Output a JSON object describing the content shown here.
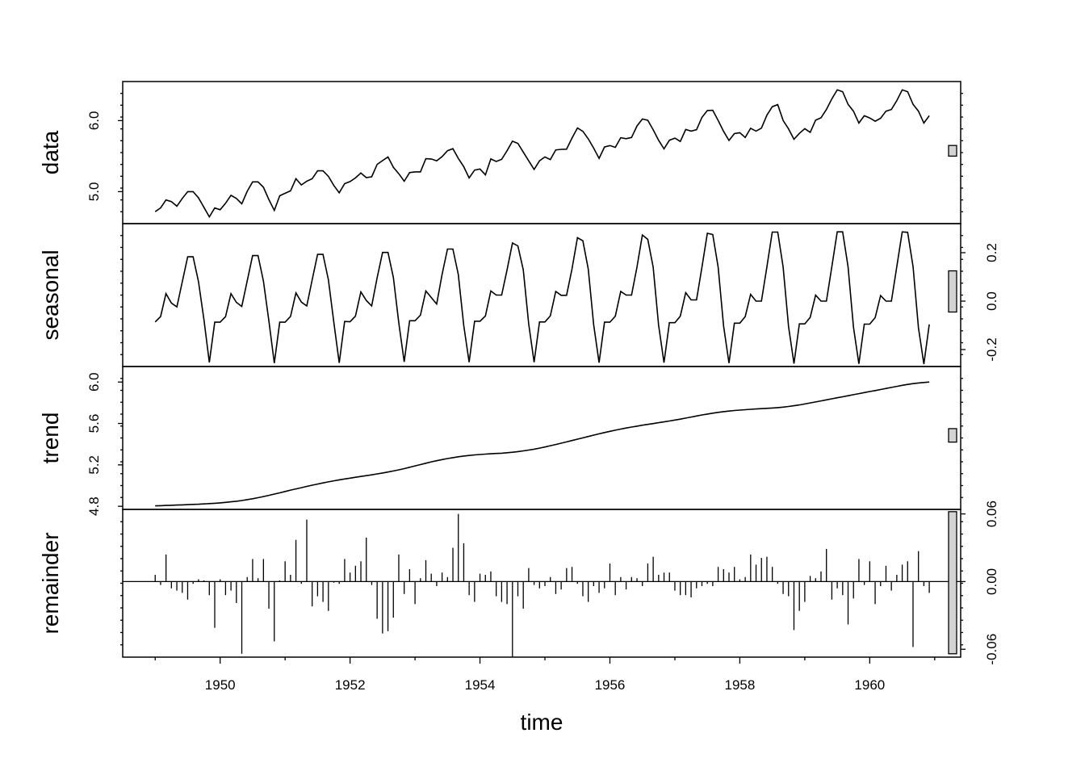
{
  "chart_data": {
    "type": "line",
    "layout": "stl-decomposition",
    "x_axis": {
      "title": "time",
      "ticks": [
        1950,
        1952,
        1954,
        1956,
        1958,
        1960
      ],
      "tick_labels": [
        "1950",
        "1952",
        "1954",
        "1956",
        "1958",
        "1960"
      ],
      "range": [
        1948.5,
        1961.4
      ]
    },
    "x": {
      "start": 1949.0,
      "step": 0.083333,
      "count": 144
    },
    "panels": [
      {
        "label": "data",
        "ylim": [
          4.55,
          6.55
        ],
        "tick_side": "left",
        "ticks": [
          5.0,
          6.0
        ],
        "tick_labels": [
          "5.0",
          "6.0"
        ],
        "range_bar": [
          5.5,
          5.65
        ],
        "values": [
          4.718,
          4.771,
          4.883,
          4.86,
          4.796,
          4.905,
          5.0,
          5.0,
          4.913,
          4.779,
          4.644,
          4.771,
          4.745,
          4.836,
          4.949,
          4.905,
          4.828,
          5.004,
          5.137,
          5.137,
          5.063,
          4.89,
          4.736,
          4.942,
          4.977,
          5.011,
          5.182,
          5.094,
          5.147,
          5.182,
          5.293,
          5.293,
          5.215,
          5.088,
          4.984,
          5.112,
          5.142,
          5.193,
          5.263,
          5.198,
          5.209,
          5.384,
          5.438,
          5.489,
          5.342,
          5.252,
          5.147,
          5.268,
          5.278,
          5.278,
          5.464,
          5.46,
          5.434,
          5.493,
          5.576,
          5.606,
          5.468,
          5.352,
          5.193,
          5.303,
          5.318,
          5.236,
          5.46,
          5.425,
          5.455,
          5.576,
          5.71,
          5.68,
          5.557,
          5.434,
          5.313,
          5.434,
          5.489,
          5.451,
          5.587,
          5.595,
          5.598,
          5.753,
          5.897,
          5.849,
          5.743,
          5.613,
          5.468,
          5.628,
          5.649,
          5.624,
          5.759,
          5.746,
          5.762,
          5.924,
          6.023,
          6.004,
          5.872,
          5.724,
          5.602,
          5.724,
          5.753,
          5.707,
          5.875,
          5.852,
          5.872,
          6.045,
          6.142,
          6.146,
          6.001,
          5.849,
          5.72,
          5.817,
          5.829,
          5.762,
          5.892,
          5.852,
          5.894,
          6.075,
          6.196,
          6.225,
          6.001,
          5.883,
          5.737,
          5.82,
          5.886,
          5.835,
          6.006,
          6.04,
          6.157,
          6.306,
          6.433,
          6.407,
          6.23,
          6.133,
          5.966,
          6.068,
          6.038,
          5.991,
          6.033,
          6.133,
          6.157,
          6.282,
          6.433,
          6.407,
          6.23,
          6.133,
          5.966,
          6.068
        ]
      },
      {
        "label": "seasonal",
        "ylim": [
          -0.27,
          0.32
        ],
        "tick_side": "right",
        "ticks": [
          -0.2,
          0.0,
          0.2
        ],
        "tick_labels": [
          "-0.2",
          "0.0",
          "0.2"
        ],
        "range_bar": [
          -0.045,
          0.125
        ],
        "values": [
          -0.086,
          -0.064,
          0.031,
          -0.008,
          -0.024,
          0.08,
          0.183,
          0.183,
          0.08,
          -0.076,
          -0.253,
          -0.087,
          -0.087,
          -0.064,
          0.031,
          -0.005,
          -0.022,
          0.083,
          0.188,
          0.188,
          0.083,
          -0.08,
          -0.256,
          -0.087,
          -0.087,
          -0.063,
          0.034,
          -0.004,
          -0.02,
          0.088,
          0.193,
          0.193,
          0.088,
          -0.087,
          -0.255,
          -0.084,
          -0.085,
          -0.062,
          0.038,
          0.003,
          -0.02,
          0.097,
          0.201,
          0.201,
          0.097,
          -0.09,
          -0.251,
          -0.081,
          -0.081,
          -0.058,
          0.042,
          0.015,
          -0.012,
          0.11,
          0.215,
          0.215,
          0.11,
          -0.099,
          -0.252,
          -0.083,
          -0.083,
          -0.061,
          0.042,
          0.025,
          0.025,
          0.129,
          0.24,
          0.228,
          0.129,
          -0.094,
          -0.252,
          -0.086,
          -0.086,
          -0.061,
          0.04,
          0.024,
          0.024,
          0.132,
          0.262,
          0.249,
          0.132,
          -0.098,
          -0.254,
          -0.087,
          -0.087,
          -0.062,
          0.04,
          0.025,
          0.025,
          0.14,
          0.273,
          0.255,
          0.14,
          -0.099,
          -0.254,
          -0.089,
          -0.089,
          -0.062,
          0.035,
          0.005,
          0.005,
          0.14,
          0.28,
          0.275,
          0.14,
          -0.102,
          -0.256,
          -0.091,
          -0.091,
          -0.064,
          0.028,
          0.0,
          0.0,
          0.14,
          0.285,
          0.285,
          0.14,
          -0.105,
          -0.258,
          -0.094,
          -0.094,
          -0.067,
          0.025,
          0.0,
          0.0,
          0.142,
          0.286,
          0.286,
          0.142,
          -0.107,
          -0.259,
          -0.095,
          -0.095,
          -0.068,
          0.023,
          0.0,
          0.0,
          0.143,
          0.286,
          0.284,
          0.143,
          -0.11,
          -0.26,
          -0.096
        ]
      },
      {
        "label": "trend",
        "ylim": [
          4.77,
          6.15
        ],
        "tick_side": "left",
        "ticks": [
          4.8,
          5.2,
          5.6,
          6.0
        ],
        "tick_labels": [
          "4.8",
          "5.2",
          "5.6",
          "6.0"
        ],
        "range_bar": [
          5.42,
          5.55
        ],
        "values": [
          4.804,
          4.806,
          4.808,
          4.81,
          4.812,
          4.814,
          4.816,
          4.818,
          4.82,
          4.823,
          4.826,
          4.829,
          4.833,
          4.838,
          4.843,
          4.849,
          4.856,
          4.864,
          4.873,
          4.883,
          4.894,
          4.906,
          4.918,
          4.93,
          4.943,
          4.956,
          4.968,
          4.98,
          4.992,
          5.004,
          5.015,
          5.026,
          5.036,
          5.046,
          5.055,
          5.064,
          5.072,
          5.08,
          5.088,
          5.096,
          5.104,
          5.113,
          5.122,
          5.131,
          5.141,
          5.152,
          5.164,
          5.177,
          5.19,
          5.203,
          5.216,
          5.229,
          5.24,
          5.251,
          5.261,
          5.27,
          5.278,
          5.285,
          5.291,
          5.296,
          5.3,
          5.304,
          5.307,
          5.31,
          5.313,
          5.317,
          5.322,
          5.328,
          5.335,
          5.343,
          5.352,
          5.362,
          5.373,
          5.385,
          5.397,
          5.409,
          5.422,
          5.435,
          5.448,
          5.461,
          5.474,
          5.487,
          5.5,
          5.512,
          5.524,
          5.535,
          5.546,
          5.556,
          5.565,
          5.574,
          5.583,
          5.591,
          5.599,
          5.607,
          5.615,
          5.624,
          5.633,
          5.642,
          5.652,
          5.662,
          5.672,
          5.682,
          5.691,
          5.699,
          5.707,
          5.714,
          5.72,
          5.725,
          5.729,
          5.733,
          5.737,
          5.74,
          5.743,
          5.746,
          5.749,
          5.753,
          5.758,
          5.764,
          5.771,
          5.779,
          5.788,
          5.798,
          5.808,
          5.818,
          5.828,
          5.838,
          5.848,
          5.858,
          5.868,
          5.878,
          5.888,
          5.898,
          5.908,
          5.918,
          5.928,
          5.938,
          5.948,
          5.958,
          5.968,
          5.977,
          5.985,
          5.991,
          5.996,
          6.0
        ]
      },
      {
        "label": "remainder",
        "ylim": [
          -0.067,
          0.064
        ],
        "tick_side": "right",
        "ticks": [
          -0.06,
          0.0,
          0.06
        ],
        "tick_labels": [
          "-0.06",
          "0.00",
          "0.06"
        ],
        "range_bar": [
          -0.064,
          0.062
        ],
        "values": [
          0.006,
          -0.003,
          0.024,
          -0.006,
          -0.008,
          -0.01,
          -0.016,
          -0.002,
          0.002,
          0.001,
          -0.012,
          -0.041,
          0.002,
          -0.012,
          -0.008,
          -0.019,
          -0.064,
          0.004,
          0.02,
          0.003,
          0.02,
          -0.024,
          -0.053,
          0.001,
          0.018,
          0.006,
          0.037,
          -0.002,
          0.055,
          -0.022,
          -0.013,
          -0.018,
          -0.026,
          -0.001,
          -0.002,
          0.02,
          0.008,
          0.014,
          0.018,
          0.039,
          -0.003,
          -0.033,
          -0.046,
          -0.044,
          -0.032,
          0.024,
          -0.011,
          0.011,
          -0.02,
          0.003,
          0.019,
          0.007,
          -0.004,
          0.008,
          0.004,
          0.03,
          0.06,
          0.034,
          -0.012,
          -0.018,
          0.007,
          0.006,
          0.009,
          -0.013,
          -0.018,
          -0.02,
          -0.067,
          -0.013,
          -0.024,
          0.012,
          -0.003,
          -0.006,
          -0.004,
          0.004,
          -0.011,
          -0.007,
          0.012,
          0.013,
          -0.002,
          -0.013,
          -0.018,
          -0.004,
          -0.01,
          -0.006,
          0.016,
          -0.012,
          0.004,
          -0.007,
          0.004,
          0.003,
          -0.004,
          0.016,
          0.022,
          0.006,
          0.008,
          0.008,
          -0.008,
          -0.012,
          -0.012,
          -0.014,
          -0.006,
          -0.004,
          -0.002,
          -0.004,
          0.013,
          0.011,
          0.008,
          0.013,
          0.002,
          0.004,
          0.024,
          0.015,
          0.021,
          0.022,
          0.013,
          -0.002,
          -0.011,
          -0.013,
          -0.043,
          -0.026,
          -0.018,
          0.005,
          0.003,
          0.009,
          0.029,
          -0.016,
          -0.006,
          -0.012,
          -0.038,
          -0.015,
          0.02,
          -0.003,
          0.018,
          -0.02,
          -0.004,
          0.014,
          -0.008,
          0.006,
          0.015,
          0.018,
          -0.058,
          0.027,
          -0.004,
          -0.01
        ]
      }
    ]
  }
}
